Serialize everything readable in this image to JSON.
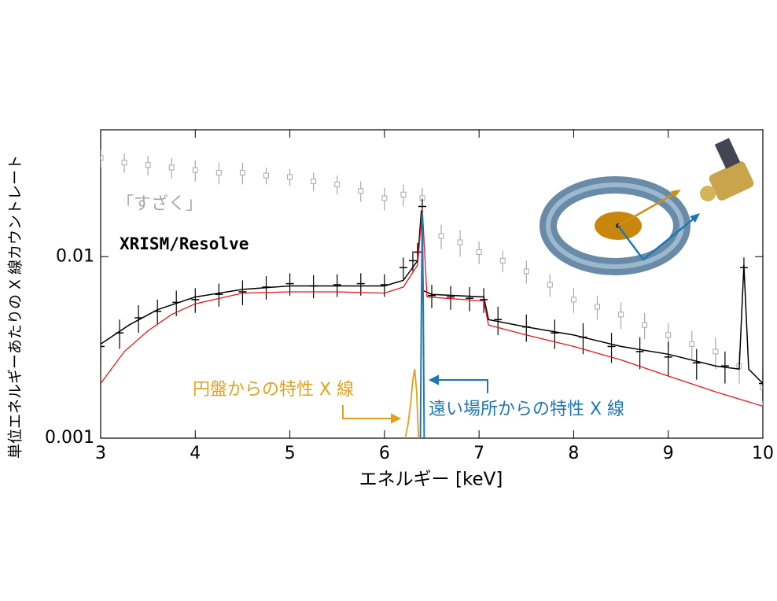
{
  "chart_data": {
    "type": "spectrum",
    "x_label": "エネルギー [keV]",
    "y_label": "単位エネルギーあたりの X 線カウントレート",
    "xlim": [
      3,
      10
    ],
    "xticks": [
      3,
      4,
      5,
      6,
      7,
      8,
      9,
      10
    ],
    "ylim": [
      0.001,
      0.05
    ],
    "yticks": [
      0.001,
      0.01
    ],
    "log_y": true,
    "series": [
      {
        "name": "「すざく」",
        "style": "errorbar",
        "color": "#a8a8a8",
        "x": [
          3.0,
          3.25,
          3.5,
          3.75,
          4.0,
          4.25,
          4.5,
          4.75,
          5.0,
          5.25,
          5.5,
          5.75,
          6.0,
          6.2,
          6.4,
          6.6,
          6.8,
          7.0,
          7.25,
          7.5,
          7.75,
          8.0,
          8.25,
          8.5,
          8.75,
          9.0,
          9.25,
          9.5,
          9.75,
          10.0
        ],
        "values": [
          0.035,
          0.033,
          0.032,
          0.031,
          0.03,
          0.029,
          0.029,
          0.028,
          0.0275,
          0.026,
          0.025,
          0.023,
          0.021,
          0.022,
          0.021,
          0.013,
          0.012,
          0.0106,
          0.0095,
          0.0083,
          0.007,
          0.0058,
          0.0053,
          0.0048,
          0.0042,
          0.0037,
          0.0033,
          0.003,
          0.0025,
          0.0019
        ],
        "errors": [
          0.004,
          0.004,
          0.004,
          0.004,
          0.004,
          0.004,
          0.004,
          0.003,
          0.003,
          0.003,
          0.003,
          0.003,
          0.003,
          0.003,
          0.003,
          0.002,
          0.002,
          0.0015,
          0.0013,
          0.0012,
          0.001,
          0.0009,
          0.0008,
          0.0008,
          0.0007,
          0.0006,
          0.0006,
          0.0006,
          0.0005,
          0.0004
        ]
      },
      {
        "name": "XRISM/Resolve",
        "style": "errorbar",
        "color": "#000000",
        "x": [
          3.0,
          3.2,
          3.4,
          3.6,
          3.8,
          4.0,
          4.25,
          4.5,
          4.75,
          5.0,
          5.25,
          5.5,
          5.75,
          6.0,
          6.2,
          6.3,
          6.35,
          6.4,
          6.5,
          6.7,
          6.9,
          7.05,
          7.2,
          7.5,
          7.8,
          8.1,
          8.4,
          8.7,
          9.0,
          9.3,
          9.6,
          9.8,
          10.0
        ],
        "values": [
          0.0032,
          0.0038,
          0.0046,
          0.005,
          0.0056,
          0.0058,
          0.0062,
          0.0064,
          0.0068,
          0.0071,
          0.0069,
          0.007,
          0.0071,
          0.007,
          0.0087,
          0.0095,
          0.0106,
          0.0189,
          0.0061,
          0.006,
          0.0059,
          0.0058,
          0.0045,
          0.0041,
          0.0038,
          0.0036,
          0.0032,
          0.003,
          0.0028,
          0.0026,
          0.0025,
          0.0087,
          0.002
        ],
        "errors": [
          0.0006,
          0.0007,
          0.0008,
          0.0008,
          0.0009,
          0.0009,
          0.0009,
          0.001,
          0.001,
          0.001,
          0.001,
          0.001,
          0.001,
          0.001,
          0.0012,
          0.0012,
          0.0013,
          0.002,
          0.0009,
          0.0009,
          0.0009,
          0.0009,
          0.0008,
          0.0007,
          0.0007,
          0.0007,
          0.0006,
          0.0006,
          0.0006,
          0.0005,
          0.0005,
          0.0012,
          0.0004
        ]
      },
      {
        "style": "line",
        "color": "#000000",
        "width": 1.5,
        "x": [
          3.0,
          3.3,
          3.6,
          4.0,
          4.5,
          5.0,
          5.5,
          6.0,
          6.2,
          6.35,
          6.39,
          6.41,
          6.5,
          7.05,
          7.1,
          7.5,
          8.0,
          8.5,
          9.0,
          9.5,
          9.75,
          9.8,
          9.85,
          10.0
        ],
        "values": [
          0.0033,
          0.0042,
          0.0051,
          0.006,
          0.0066,
          0.0069,
          0.0069,
          0.0069,
          0.0074,
          0.0095,
          0.018,
          0.0065,
          0.0062,
          0.006,
          0.0045,
          0.0041,
          0.0037,
          0.0032,
          0.0029,
          0.0025,
          0.0024,
          0.009,
          0.0024,
          0.002
        ]
      },
      {
        "style": "line",
        "color": "#e8141c",
        "width": 1.3,
        "x": [
          3.0,
          3.25,
          3.5,
          3.75,
          4.0,
          4.5,
          5.0,
          5.5,
          6.0,
          6.2,
          6.35,
          6.4,
          6.45,
          7.05,
          7.1,
          7.5,
          8.0,
          8.5,
          9.0,
          9.5,
          10.0
        ],
        "values": [
          0.002,
          0.003,
          0.0039,
          0.0048,
          0.0055,
          0.0063,
          0.0064,
          0.0064,
          0.0063,
          0.0068,
          0.009,
          0.0184,
          0.006,
          0.0057,
          0.0042,
          0.0037,
          0.0032,
          0.0027,
          0.0022,
          0.0018,
          0.0015
        ]
      },
      {
        "name": "円盤からの特性 X 線",
        "style": "line",
        "color": "#e4a01a",
        "width": 1.8,
        "x": [
          6.22,
          6.25,
          6.28,
          6.3,
          6.32,
          6.34,
          6.36
        ],
        "values": [
          0.001,
          0.0012,
          0.0016,
          0.0021,
          0.0024,
          0.0018,
          0.001
        ]
      },
      {
        "name": "遠い場所からの特性 X 線",
        "style": "line",
        "color": "#1f77b4",
        "width": 2,
        "x": [
          6.38,
          6.39,
          6.4,
          6.41,
          6.42
        ],
        "values": [
          0.001,
          0.005,
          0.0175,
          0.005,
          0.001
        ]
      }
    ]
  }
}
